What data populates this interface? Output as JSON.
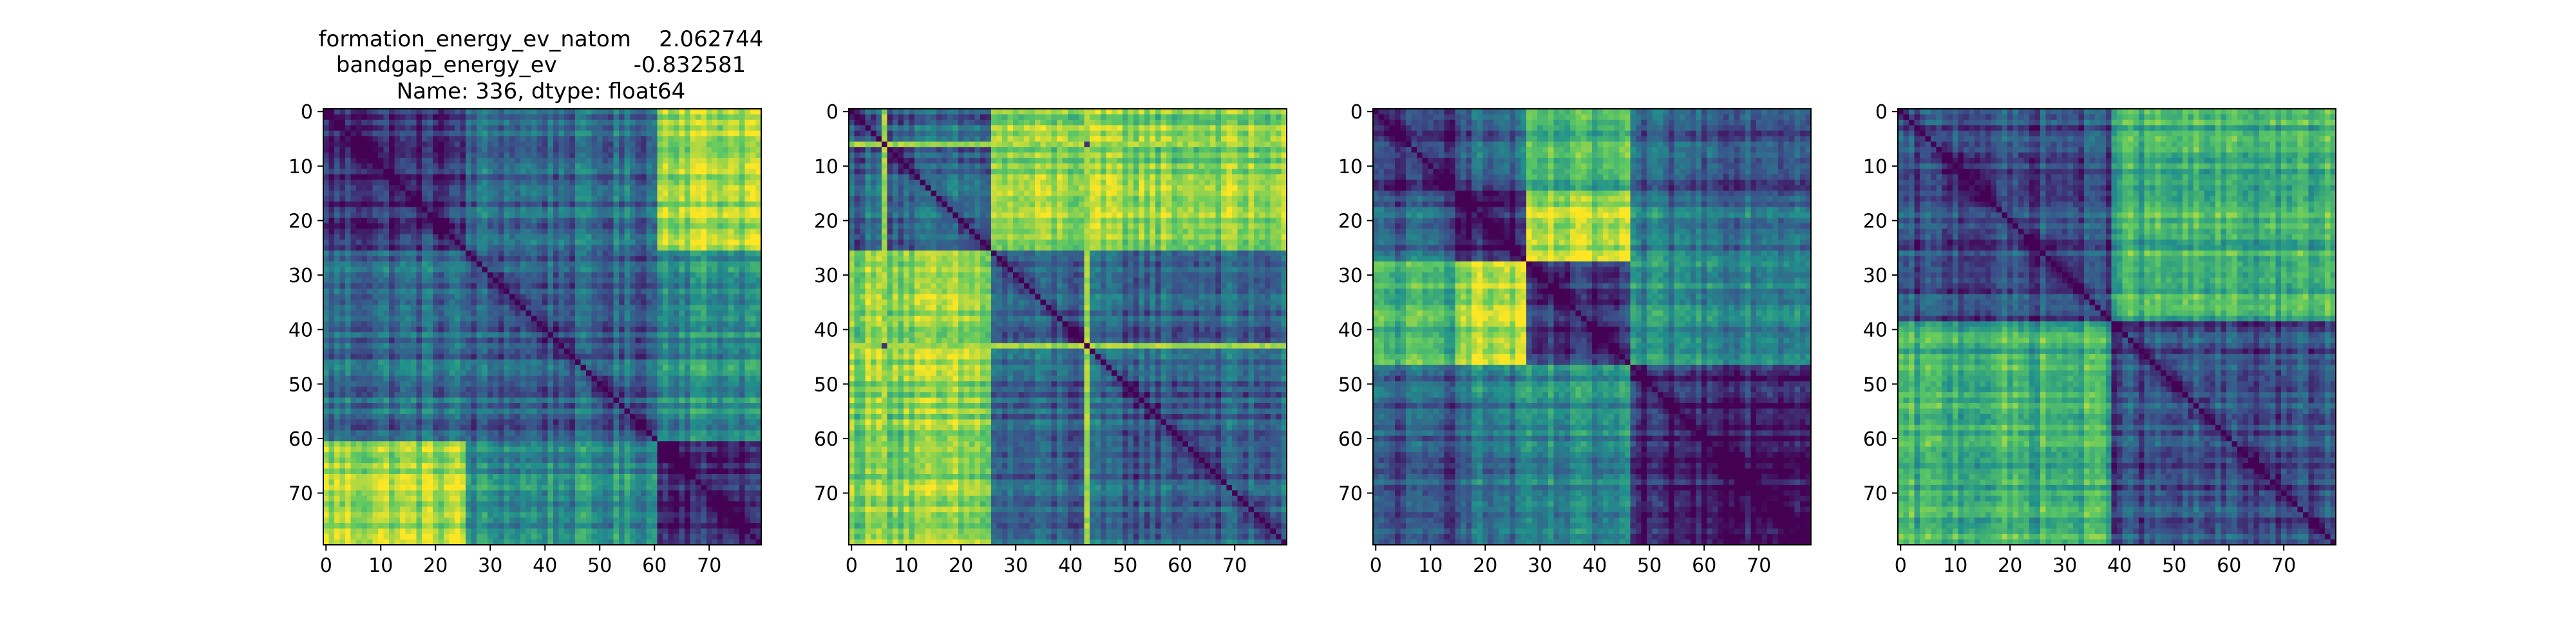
{
  "figure": {
    "title_lines": [
      "formation_energy_ev_natom    2.062744",
      "bandgap_energy_ev           -0.832581",
      "Name: 336, dtype: float64"
    ]
  },
  "chart_data": [
    {
      "type": "heatmap",
      "title": "formation_energy_ev_natom    2.062744\nbandgap_energy_ev           -0.832581\nName: 336, dtype: float64",
      "size": 80,
      "x_ticks": [
        0,
        10,
        20,
        30,
        40,
        50,
        60,
        70
      ],
      "y_ticks": [
        0,
        10,
        20,
        30,
        40,
        50,
        60,
        70
      ],
      "colormap": "viridis",
      "diagonal_value": 0,
      "blocks": [
        {
          "range": [
            0,
            26
          ],
          "label": "block-1"
        },
        {
          "range": [
            26,
            61
          ],
          "label": "block-2"
        },
        {
          "range": [
            61,
            80
          ],
          "label": "block-3"
        }
      ],
      "block_levels": [
        [
          0.15,
          0.35,
          0.88
        ],
        [
          0.35,
          0.3,
          0.5
        ],
        [
          0.88,
          0.5,
          0.15
        ]
      ]
    },
    {
      "type": "heatmap",
      "size": 80,
      "x_ticks": [
        0,
        10,
        20,
        30,
        40,
        50,
        60,
        70
      ],
      "y_ticks": [
        0,
        10,
        20,
        30,
        40,
        50,
        60,
        70
      ],
      "colormap": "viridis",
      "diagonal_value": 0,
      "blocks": [
        {
          "range": [
            0,
            26
          ],
          "label": "block-1"
        },
        {
          "range": [
            26,
            80
          ],
          "label": "block-2"
        }
      ],
      "block_levels": [
        [
          0.3,
          0.8
        ],
        [
          0.8,
          0.3
        ]
      ],
      "bright_lines": [
        6,
        43
      ]
    },
    {
      "type": "heatmap",
      "size": 80,
      "x_ticks": [
        0,
        10,
        20,
        30,
        40,
        50,
        60,
        70
      ],
      "y_ticks": [
        0,
        10,
        20,
        30,
        40,
        50,
        60,
        70
      ],
      "colormap": "viridis",
      "diagonal_value": 0,
      "blocks": [
        {
          "range": [
            0,
            15
          ],
          "label": "block-1"
        },
        {
          "range": [
            15,
            28
          ],
          "label": "block-2"
        },
        {
          "range": [
            28,
            47
          ],
          "label": "block-3"
        },
        {
          "range": [
            47,
            80
          ],
          "label": "block-4"
        }
      ],
      "block_levels": [
        [
          0.15,
          0.3,
          0.62,
          0.28
        ],
        [
          0.3,
          0.1,
          0.85,
          0.4
        ],
        [
          0.62,
          0.85,
          0.1,
          0.45
        ],
        [
          0.28,
          0.4,
          0.45,
          0.12
        ]
      ]
    },
    {
      "type": "heatmap",
      "size": 80,
      "x_ticks": [
        0,
        10,
        20,
        30,
        40,
        50,
        60,
        70
      ],
      "y_ticks": [
        0,
        10,
        20,
        30,
        40,
        50,
        60,
        70
      ],
      "colormap": "viridis",
      "diagonal_value": 0,
      "blocks": [
        {
          "range": [
            0,
            39
          ],
          "label": "block-1"
        },
        {
          "range": [
            39,
            80
          ],
          "label": "block-2"
        }
      ],
      "block_levels": [
        [
          0.22,
          0.62
        ],
        [
          0.62,
          0.22
        ]
      ]
    }
  ]
}
